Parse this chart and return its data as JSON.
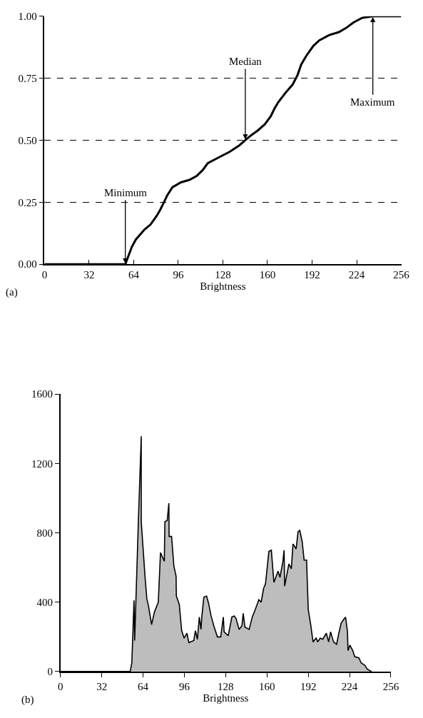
{
  "chart_data": [
    {
      "type": "line",
      "xlabel": "Brightness",
      "xlim": [
        0,
        256
      ],
      "xticks": [
        0,
        32,
        64,
        96,
        128,
        160,
        192,
        224,
        256
      ],
      "ylim": [
        0,
        1
      ],
      "yticks": [
        {
          "value": 0,
          "label": "0.00"
        },
        {
          "value": 0.25,
          "label": "0.25"
        },
        {
          "value": 0.5,
          "label": "0.50"
        },
        {
          "value": 0.75,
          "label": "0.75"
        },
        {
          "value": 1,
          "label": "1.00"
        }
      ],
      "grid": "y",
      "marker": "none",
      "line_style": "solid",
      "series": [
        {
          "color": "#000000",
          "x": [
            0,
            58,
            60,
            62.7,
            65.6,
            71.8,
            76.1,
            80.5,
            83.1,
            85.7,
            88.3,
            91.8,
            97.9,
            104,
            109.2,
            113.6,
            117.1,
            124.1,
            132.8,
            139.8,
            144.1,
            148.5,
            152.8,
            158.1,
            162.4,
            165,
            167.7,
            172.9,
            178.1,
            181.6,
            184.2,
            187.7,
            193,
            197.3,
            204.3,
            211.2,
            216.5,
            221.7,
            227.8,
            235.6,
            256
          ],
          "values": [
            0,
            0,
            0.03,
            0.07,
            0.1,
            0.14,
            0.16,
            0.195,
            0.22,
            0.25,
            0.28,
            0.31,
            0.33,
            0.34,
            0.356,
            0.38,
            0.407,
            0.428,
            0.453,
            0.479,
            0.5,
            0.521,
            0.538,
            0.564,
            0.597,
            0.627,
            0.653,
            0.691,
            0.725,
            0.763,
            0.805,
            0.839,
            0.881,
            0.903,
            0.924,
            0.936,
            0.953,
            0.975,
            0.993,
            1,
            1
          ]
        }
      ],
      "annotations": [
        {
          "text": "Minimum",
          "x": 58,
          "y": 0
        },
        {
          "text": "Median",
          "x": 144.1,
          "y": 0.5
        },
        {
          "text": "Maximum",
          "x": 235.6,
          "y": 1
        },
        "(a)"
      ]
    },
    {
      "type": "area",
      "xlabel": "Brightness",
      "xlim": [
        0,
        256
      ],
      "xticks": [
        0,
        32,
        64,
        96,
        128,
        160,
        192,
        224,
        256
      ],
      "ylim": [
        0,
        1600
      ],
      "yticks": [
        0,
        400,
        800,
        1200,
        1600
      ],
      "grid": false,
      "marker": "none",
      "line_style": "solid",
      "series": [
        {
          "color": "#bdbdbd",
          "x": [
            0,
            54,
            55.3,
            57,
            57.5,
            60.3,
            62.6,
            62.6,
            65.5,
            66.9,
            68.2,
            70.6,
            72.8,
            75.8,
            77.5,
            80.5,
            80.9,
            82.7,
            84,
            84.2,
            86.1,
            87.9,
            89.6,
            89.8,
            92.1,
            93.9,
            95.8,
            98,
            99.5,
            103.3,
            104.6,
            106.1,
            107.6,
            108.9,
            109.6,
            111.1,
            113.2,
            114.8,
            116.7,
            119.1,
            121.6,
            124.2,
            126.2,
            126.8,
            130,
            132.8,
            134.6,
            136,
            138.4,
            140.6,
            141.6,
            142.9,
            146.2,
            148.6,
            150.9,
            153.7,
            155.5,
            157.4,
            158.9,
            161.5,
            163.4,
            165.4,
            168.6,
            170.1,
            172.4,
            173.3,
            173.7,
            177,
            178.9,
            180.2,
            182.6,
            184.1,
            185.4,
            187.3,
            188.8,
            190.7,
            192,
            193.9,
            195.7,
            198.1,
            199.4,
            201.3,
            203.2,
            206,
            207.8,
            209.3,
            211.6,
            214,
            215.7,
            217.5,
            219.4,
            220.9,
            222.4,
            222.8,
            224.3,
            226.5,
            228,
            231.2,
            233,
            235.8,
            237.7,
            241
          ],
          "values": [
            0,
            0,
            50,
            410,
            179,
            850,
            1357,
            864,
            550,
            421,
            379,
            271,
            343,
            400,
            686,
            636,
            864,
            871,
            971,
            779,
            779,
            607,
            550,
            436,
            386,
            236,
            193,
            221,
            167,
            179,
            236,
            186,
            314,
            243,
            321,
            429,
            436,
            393,
            321,
            257,
            200,
            200,
            314,
            229,
            207,
            314,
            321,
            307,
            243,
            264,
            336,
            257,
            243,
            314,
            357,
            414,
            400,
            479,
            507,
            693,
            700,
            514,
            579,
            543,
            636,
            700,
            493,
            621,
            593,
            736,
            707,
            807,
            814,
            750,
            643,
            643,
            357,
            271,
            171,
            193,
            171,
            193,
            186,
            221,
            171,
            229,
            171,
            157,
            221,
            279,
            300,
            314,
            229,
            121,
            153,
            121,
            86,
            79,
            50,
            36,
            14,
            0
          ]
        }
      ],
      "annotations": [
        "(b)"
      ]
    }
  ]
}
